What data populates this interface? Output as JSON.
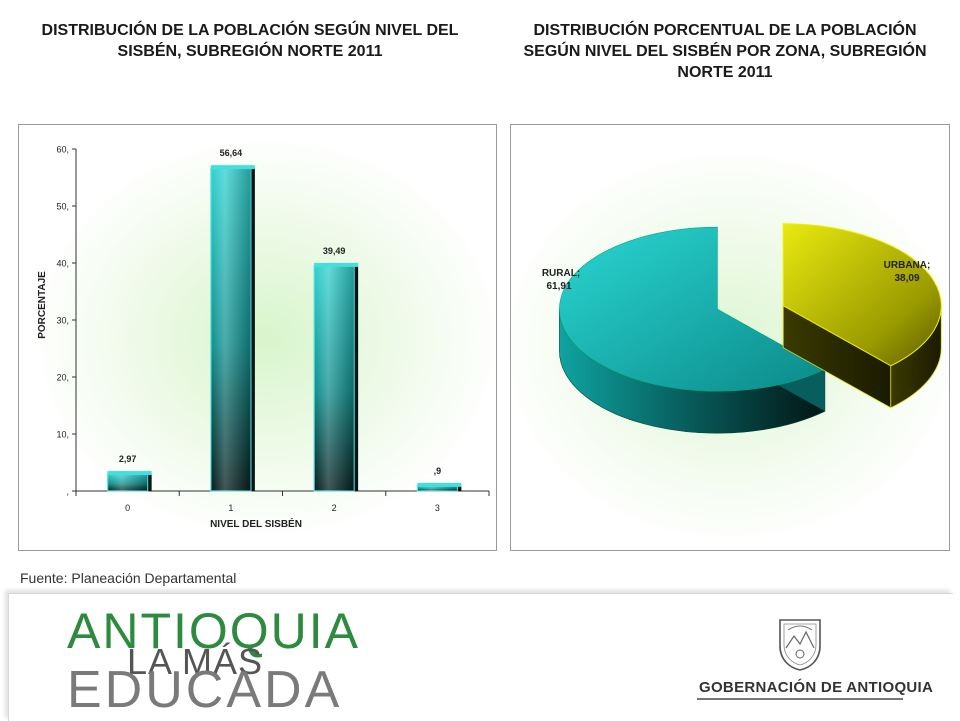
{
  "titles": {
    "left": "DISTRIBUCIÓN DE LA POBLACIÓN SEGÚN NIVEL DEL SISBÉN, SUBREGIÓN NORTE 2011",
    "right": "DISTRIBUCIÓN  PORCENTUAL DE LA POBLACIÓN SEGÚN NIVEL DEL SISBÉN POR ZONA, SUBREGIÓN NORTE 2011"
  },
  "chart_data": [
    {
      "type": "bar",
      "title": "DISTRIBUCIÓN DE LA POBLACIÓN SEGÚN NIVEL DEL SISBÉN, SUBREGIÓN NORTE 2011",
      "categories": [
        "0",
        "1",
        "2",
        "3"
      ],
      "values": [
        2.97,
        56.64,
        39.49,
        0.9
      ],
      "data_labels": [
        "2,97",
        "56,64",
        "39,49",
        ",9"
      ],
      "xlabel": "NIVEL  DEL  SISBÉN",
      "ylabel": "PORCENTAJE",
      "ylim": [
        0,
        60
      ],
      "yticks": [
        0,
        10,
        20,
        30,
        40,
        50,
        60
      ],
      "ytick_labels": [
        ",",
        "10,",
        "20,",
        "30,",
        "40,",
        "50,",
        "60,"
      ],
      "colors": {
        "bar_top": "#35d1cf",
        "bar_body": "#12a3a2",
        "bar_dark": "#062a2a"
      }
    },
    {
      "type": "pie",
      "title": "DISTRIBUCIÓN  PORCENTUAL DE LA POBLACIÓN SEGÚN NIVEL DEL SISBÉN POR ZONA, SUBREGIÓN NORTE 2011",
      "slices": [
        {
          "label": "RURAL",
          "value": 61.91,
          "text": [
            "RURAL;",
            "61,91"
          ],
          "color": "#19b9b7"
        },
        {
          "label": "URBANA",
          "value": 38.09,
          "text": [
            "URBANA;",
            "38,09"
          ],
          "color": "#e6e600"
        }
      ]
    }
  ],
  "source": "Fuente: Planeación Departamental",
  "footer": {
    "logo_line1": "ANTIOQUIA",
    "logo_line2": "LA MÁS",
    "logo_line3": "EDUCADA",
    "gobernacion": "GOBERNACIÓN DE ANTIOQUIA"
  }
}
